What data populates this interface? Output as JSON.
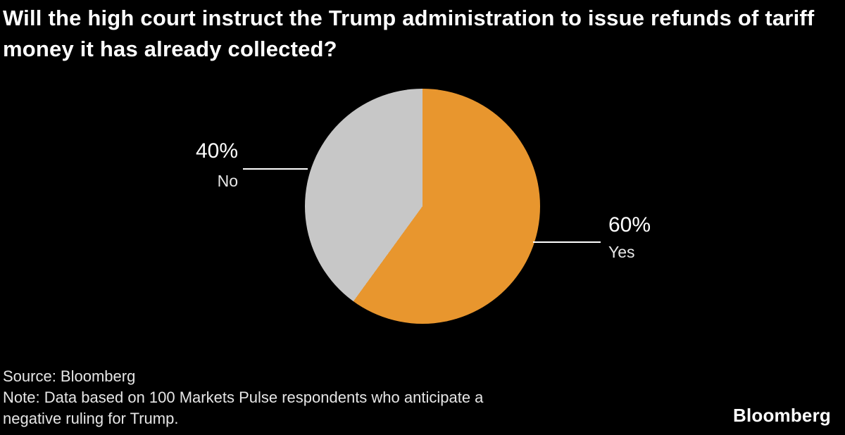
{
  "chart_data": {
    "type": "pie",
    "title": "Will the high court instruct the Trump administration to issue refunds of tariff money it has already collected?",
    "labels": [
      "Yes",
      "No"
    ],
    "values": [
      60,
      40
    ],
    "colors": [
      "#E8962E",
      "#C7C7C7"
    ],
    "start_angle_deg": 0,
    "direction": "clockwise",
    "legend_position": "none",
    "annotations": [
      {
        "percent_label": "40%",
        "name": "No",
        "side": "left"
      },
      {
        "percent_label": "60%",
        "name": "Yes",
        "side": "right"
      }
    ]
  },
  "footer": {
    "source": "Source: Bloomberg",
    "note_line1": "Note: Data based on 100 Markets Pulse respondents who anticipate a",
    "note_line2": "negative ruling for Trump.",
    "logo": "Bloomberg"
  }
}
